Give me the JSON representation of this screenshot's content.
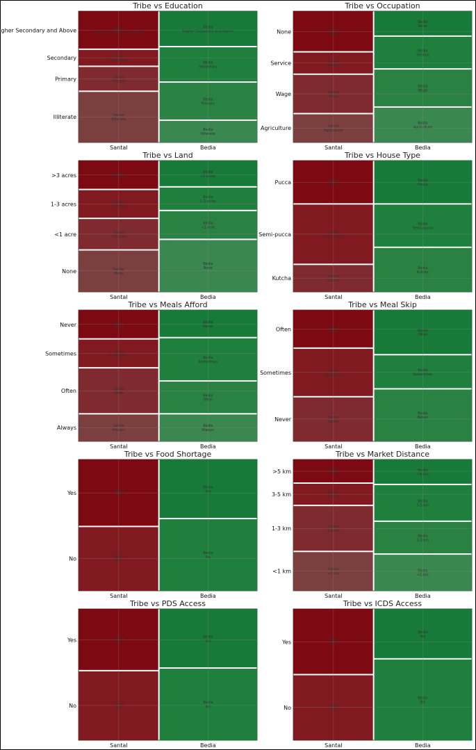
{
  "colors": {
    "santal": [
      "#7d0a12",
      "#801a20",
      "#7f2a2e",
      "#7c3f40"
    ],
    "bedia": [
      "#177a38",
      "#1f7f3c",
      "#2a8242",
      "#3b8750"
    ],
    "gridline": "#8a8a8a",
    "separator": "#ffffff"
  },
  "chart_data": [
    {
      "type": "mosaic",
      "title": "Tribe vs Education",
      "x_categories": [
        "Santal",
        "Bedia"
      ],
      "x_widths": [
        0.45,
        0.55
      ],
      "y_categories": [
        "Higher Secondary and Above",
        "Secondary",
        "Primary",
        "Illiterate"
      ],
      "proportions": {
        "Santal": [
          0.29,
          0.13,
          0.19,
          0.39
        ],
        "Bedia": [
          0.27,
          0.27,
          0.29,
          0.17
        ]
      }
    },
    {
      "type": "mosaic",
      "title": "Tribe vs Occupation",
      "x_categories": [
        "Santal",
        "Bedia"
      ],
      "x_widths": [
        0.45,
        0.55
      ],
      "y_categories": [
        "None",
        "Service",
        "Wage",
        "Agriculture"
      ],
      "proportions": {
        "Santal": [
          0.31,
          0.17,
          0.3,
          0.22
        ],
        "Bedia": [
          0.19,
          0.25,
          0.29,
          0.27
        ]
      }
    },
    {
      "type": "mosaic",
      "title": "Tribe vs Land",
      "x_categories": [
        "Santal",
        "Bedia"
      ],
      "x_widths": [
        0.45,
        0.55
      ],
      "y_categories": [
        ">3 acres",
        "1-3 acres",
        "<1 acre",
        "None"
      ],
      "proportions": {
        "Santal": [
          0.22,
          0.22,
          0.24,
          0.32
        ],
        "Bedia": [
          0.2,
          0.18,
          0.22,
          0.4
        ]
      }
    },
    {
      "type": "mosaic",
      "title": "Tribe vs House Type",
      "x_categories": [
        "Santal",
        "Bedia"
      ],
      "x_widths": [
        0.45,
        0.55
      ],
      "y_categories": [
        "Pucca",
        "Semi-pucca",
        "Kutcha"
      ],
      "proportions": {
        "Santal": [
          0.33,
          0.46,
          0.21
        ],
        "Bedia": [
          0.33,
          0.33,
          0.34
        ]
      }
    },
    {
      "type": "mosaic",
      "title": "Tribe vs Meals Afford",
      "x_categories": [
        "Santal",
        "Bedia"
      ],
      "x_widths": [
        0.45,
        0.55
      ],
      "y_categories": [
        "Never",
        "Sometimes",
        "Often",
        "Always"
      ],
      "proportions": {
        "Santal": [
          0.22,
          0.22,
          0.35,
          0.21
        ],
        "Bedia": [
          0.21,
          0.33,
          0.25,
          0.21
        ]
      }
    },
    {
      "type": "mosaic",
      "title": "Tribe vs Meal Skip",
      "x_categories": [
        "Santal",
        "Bedia"
      ],
      "x_widths": [
        0.45,
        0.55
      ],
      "y_categories": [
        "Often",
        "Sometimes",
        "Never"
      ],
      "proportions": {
        "Santal": [
          0.29,
          0.37,
          0.34
        ],
        "Bedia": [
          0.34,
          0.26,
          0.4
        ]
      }
    },
    {
      "type": "mosaic",
      "title": "Tribe vs Food Shortage",
      "x_categories": [
        "Santal",
        "Bedia"
      ],
      "x_widths": [
        0.45,
        0.55
      ],
      "y_categories": [
        "Yes",
        "No"
      ],
      "proportions": {
        "Santal": [
          0.51,
          0.49
        ],
        "Bedia": [
          0.45,
          0.55
        ]
      }
    },
    {
      "type": "mosaic",
      "title": "Tribe vs Market Distance",
      "x_categories": [
        "Santal",
        "Bedia"
      ],
      "x_widths": [
        0.45,
        0.55
      ],
      "y_categories": [
        ">5 km",
        "3-5 km",
        "1-3 km",
        "<1 km"
      ],
      "proportions": {
        "Santal": [
          0.18,
          0.17,
          0.35,
          0.3
        ],
        "Bedia": [
          0.19,
          0.28,
          0.25,
          0.28
        ]
      }
    },
    {
      "type": "mosaic",
      "title": "Tribe vs PDS Access",
      "x_categories": [
        "Santal",
        "Bedia"
      ],
      "x_widths": [
        0.45,
        0.55
      ],
      "y_categories": [
        "Yes",
        "No"
      ],
      "proportions": {
        "Santal": [
          0.47,
          0.53
        ],
        "Bedia": [
          0.45,
          0.55
        ]
      }
    },
    {
      "type": "mosaic",
      "title": "Tribe vs ICDS Access",
      "x_categories": [
        "Santal",
        "Bedia"
      ],
      "x_widths": [
        0.45,
        0.55
      ],
      "y_categories": [
        "Yes",
        "No"
      ],
      "proportions": {
        "Santal": [
          0.5,
          0.5
        ],
        "Bedia": [
          0.38,
          0.62
        ]
      }
    }
  ]
}
